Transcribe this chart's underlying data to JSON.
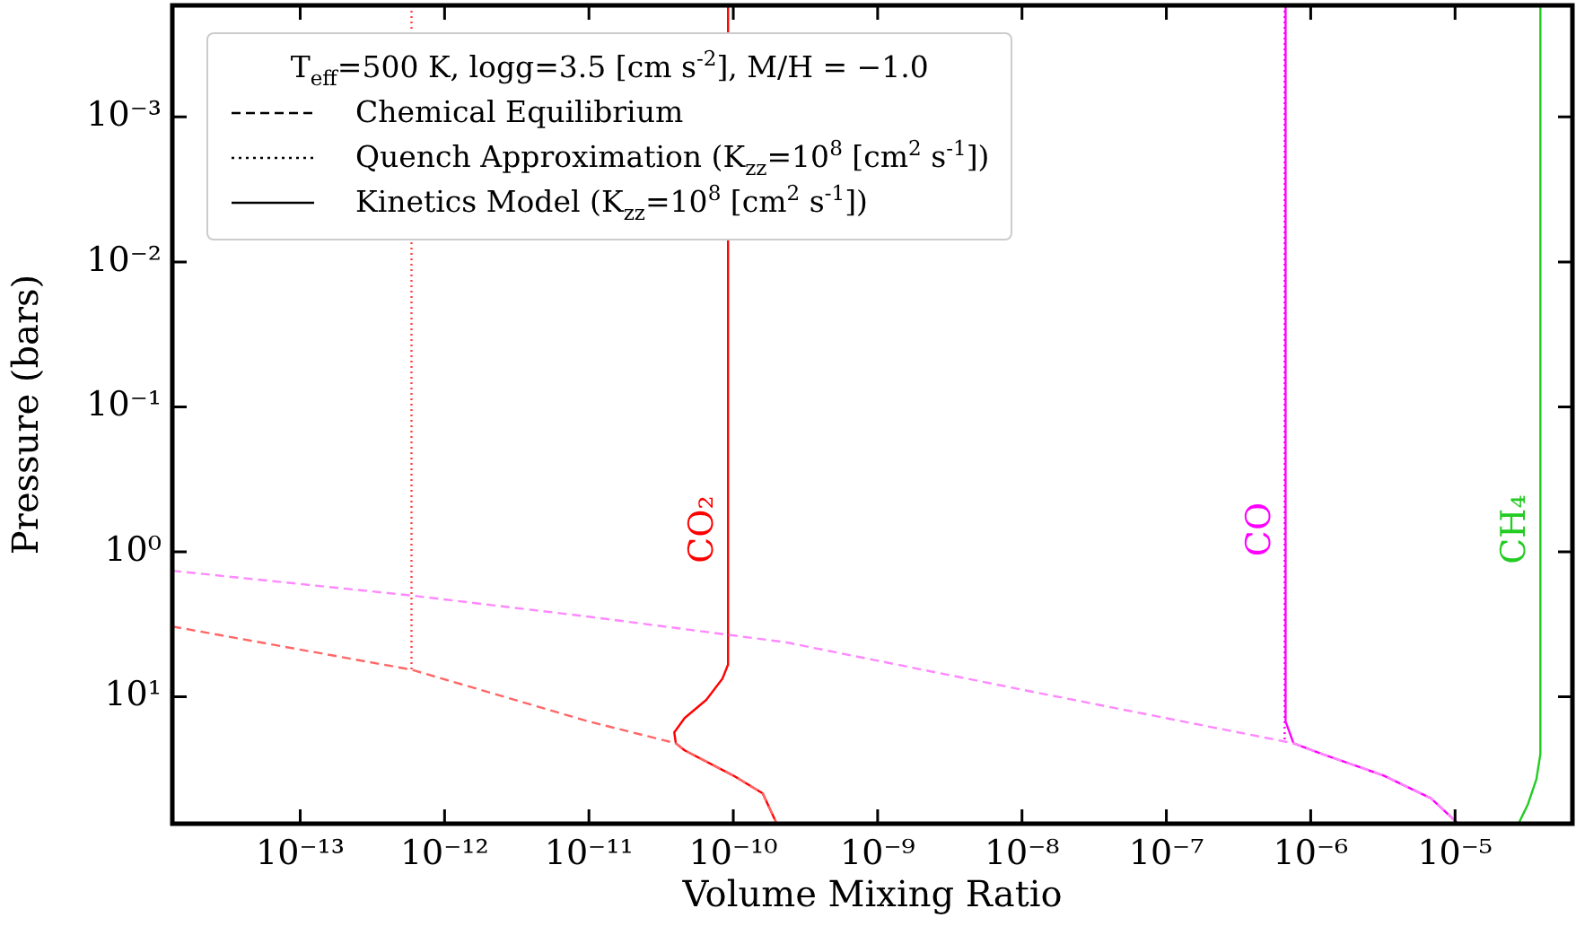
{
  "chart_data": {
    "type": "line",
    "xlabel": "Volume Mixing Ratio",
    "ylabel": "Pressure (bars)",
    "legend_title": "T$_{eff}$=500 K, logg=3.5 [cm s$^{-2}$], M/H = −1.0",
    "annotations": [
      "Chemical Equilibrium",
      "Quench Approximation (K$_{zz}$=10$^{8}$ [cm$^{2}$ s$^{-1}$])",
      "Kinetics Model (K$_{zz}$=10$^{8}$ [cm$^{2}$ s$^{-1}$])",
      {
        "text": "CO₂",
        "x": 9.2e-11,
        "y": 0.7
      },
      {
        "text": "CO",
        "x": 6.7e-07,
        "y": 0.7
      },
      {
        "text": "CH₄",
        "x": 3.9e-05,
        "y": 0.7
      }
    ],
    "log": "xy",
    "grid": false,
    "marker": "none",
    "xlim": [
      1.3e-14,
      6.5e-05
    ],
    "ylim": [
      75,
      0.00017
    ],
    "xticks": [
      {
        "value": 1e-13,
        "label": "10⁻¹³"
      },
      {
        "value": 1e-12,
        "label": "10⁻¹²"
      },
      {
        "value": 1e-11,
        "label": "10⁻¹¹"
      },
      {
        "value": 1e-10,
        "label": "10⁻¹⁰"
      },
      {
        "value": 1e-09,
        "label": "10⁻⁹"
      },
      {
        "value": 1e-08,
        "label": "10⁻⁸"
      },
      {
        "value": 1e-07,
        "label": "10⁻⁷"
      },
      {
        "value": 1e-06,
        "label": "10⁻⁶"
      },
      {
        "value": 1e-05,
        "label": "10⁻⁵"
      }
    ],
    "yticks": [
      {
        "value": 0.001,
        "label": "10⁻³"
      },
      {
        "value": 0.01,
        "label": "10⁻²"
      },
      {
        "value": 0.1,
        "label": "10⁻¹"
      },
      {
        "value": 1,
        "label": "10⁰"
      },
      {
        "value": 10,
        "label": "10¹"
      }
    ],
    "series": [
      {
        "color": "#ff6666",
        "line_style": "dashed",
        "x": [
          1.3e-14,
          5.9e-13,
          1e-11,
          4e-11,
          4.6e-11,
          1e-10,
          1.6e-10,
          2e-10
        ],
        "values": [
          3.27,
          6.5,
          14.8,
          20.9,
          23.4,
          34.9,
          46.4,
          75
        ]
      },
      {
        "color": "#ff88ff",
        "line_style": "dashed",
        "x": [
          1.3e-14,
          5.9e-13,
          1e-11,
          2.3e-10,
          1.3e-08,
          7.6e-07,
          1.2e-06,
          3.2e-06,
          6.8e-06,
          1.05e-05
        ],
        "values": [
          1.35,
          2.0,
          2.8,
          4.2,
          9.4,
          20.9,
          24.8,
          34.9,
          50,
          75
        ]
      },
      {
        "color": "#ff4444",
        "line_style": "dotted",
        "x": [
          5.9e-13,
          5.9e-13
        ],
        "values": [
          0.00017,
          6.5
        ]
      },
      {
        "color": "#ff00ff",
        "line_style": "dotted",
        "x": [
          6.6e-07,
          6.6e-07
        ],
        "values": [
          0.00017,
          20
        ]
      },
      {
        "color": "#ff0000",
        "line_style": "solid",
        "x": [
          9.2e-11,
          9.2e-11,
          8.4e-11,
          6.5e-11,
          4.6e-11,
          3.9e-11,
          4e-11,
          4.6e-11,
          1e-10,
          1.6e-10,
          2e-10
        ],
        "values": [
          0.00017,
          6.0,
          7.5,
          10.5,
          14,
          17.6,
          20.9,
          23.4,
          34.9,
          46.4,
          75
        ]
      },
      {
        "color": "#ff00ff",
        "line_style": "solid",
        "x": [
          6.7e-07,
          6.7e-07,
          7.6e-07,
          1.2e-06,
          3.2e-06,
          6.8e-06,
          1.05e-05
        ],
        "values": [
          0.00017,
          14.8,
          20.9,
          24.8,
          34.9,
          50,
          75
        ]
      },
      {
        "color": "#22cc22",
        "line_style": "solid",
        "x": [
          3.9e-05,
          3.9e-05,
          3.66e-05,
          3.2e-05,
          2.75e-05
        ],
        "values": [
          0.00017,
          24.8,
          37,
          55,
          75
        ]
      }
    ]
  }
}
